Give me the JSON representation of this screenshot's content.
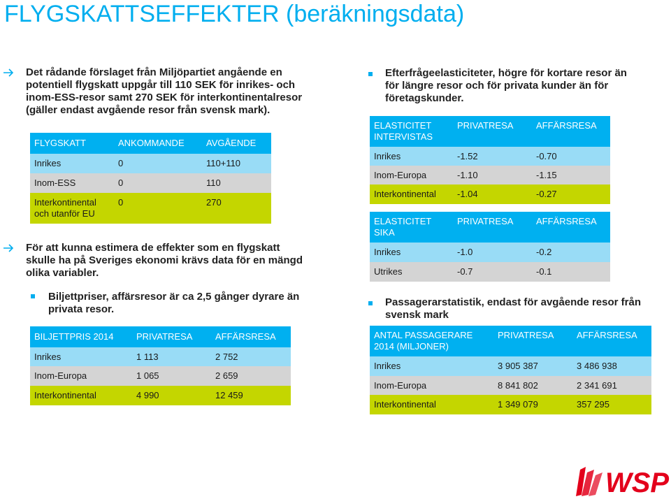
{
  "title": "FLYGSKATTSEFFEKTER (beräkningsdata)",
  "left": {
    "para1": [
      "Det rådande förslaget från Miljöpartiet angående en",
      "potentiell flygskatt uppgår till 110 SEK för inrikes- och",
      "inom-ESS-resor samt 270 SEK för interkontinentalresor",
      "(gäller endast avgående resor från svensk mark)."
    ],
    "flygskatt_table": {
      "headers": [
        "FLYGSKATT",
        "ANKOMMANDE",
        "AVGÅENDE"
      ],
      "rows": [
        [
          "Inrikes",
          "0",
          "110+110"
        ],
        [
          "Inom-ESS",
          "0",
          "110"
        ],
        [
          "Interkontinental och utanför EU",
          "0",
          "270"
        ]
      ],
      "row3_line1": "Interkontinental",
      "row3_line2": "och utanför EU"
    },
    "para2": [
      "För att kunna estimera de effekter som en flygskatt",
      "skulle ha på Sveriges ekonomi krävs data för en mängd",
      "olika variabler."
    ],
    "bullet1": [
      "Biljettpriser, affärsresor är ca 2,5 gånger dyrare än",
      "privata resor."
    ],
    "biljettpris_table": {
      "headers": [
        "BILJETTPRIS 2014",
        "PRIVATRESA",
        "AFFÄRSRESA"
      ],
      "rows": [
        [
          "Inrikes",
          "1 113",
          "2 752"
        ],
        [
          "Inom-Europa",
          "1 065",
          "2 659"
        ],
        [
          "Interkontinental",
          "4 990",
          "12 459"
        ]
      ]
    }
  },
  "right": {
    "bullet1": [
      "Efterfrågeelasticiteter, högre för kortare resor än",
      "för längre resor och för privata kunder än för",
      "företagskunder."
    ],
    "elasticitet_intervistas": {
      "header_line1": "ELASTICITET",
      "header_line2": "INTERVISTAS",
      "headers": [
        "PRIVATRESA",
        "AFFÄRSRESA"
      ],
      "rows": [
        [
          "Inrikes",
          "-1.52",
          "-0.70"
        ],
        [
          "Inom-Europa",
          "-1.10",
          "-1.15"
        ],
        [
          "Interkontinental",
          "-1.04",
          "-0.27"
        ]
      ]
    },
    "elasticitet_sika": {
      "header_line1": "ELASTICITET",
      "header_line2": "SIKA",
      "headers": [
        "PRIVATRESA",
        "AFFÄRSRESA"
      ],
      "rows": [
        [
          "Inrikes",
          "-1.0",
          "-0.2"
        ],
        [
          "Utrikes",
          "-0.7",
          "-0.1"
        ]
      ]
    },
    "bullet2": [
      "Passagerarstatistik, endast för avgående resor från",
      "svensk mark"
    ],
    "passagerare_table": {
      "header_line1": "ANTAL PASSAGERARE",
      "header_line2": "2014 (MILJONER)",
      "headers": [
        "PRIVATRESA",
        "AFFÄRSRESA"
      ],
      "rows": [
        [
          "Inrikes",
          "3 905 387",
          "3 486 938"
        ],
        [
          "Inom-Europa",
          "8 841 802",
          "2 341 691"
        ],
        [
          "Interkontinental",
          "1 349 079",
          "357 295"
        ]
      ]
    }
  },
  "logo_text": "WSP",
  "colors": {
    "accent": "#00aeef",
    "header_blue": "#00b0f0",
    "row_blue": "#99dcf6",
    "row_gray": "#d4d4d4",
    "row_lime": "#c4d600",
    "logo_red": "#e3001b"
  }
}
